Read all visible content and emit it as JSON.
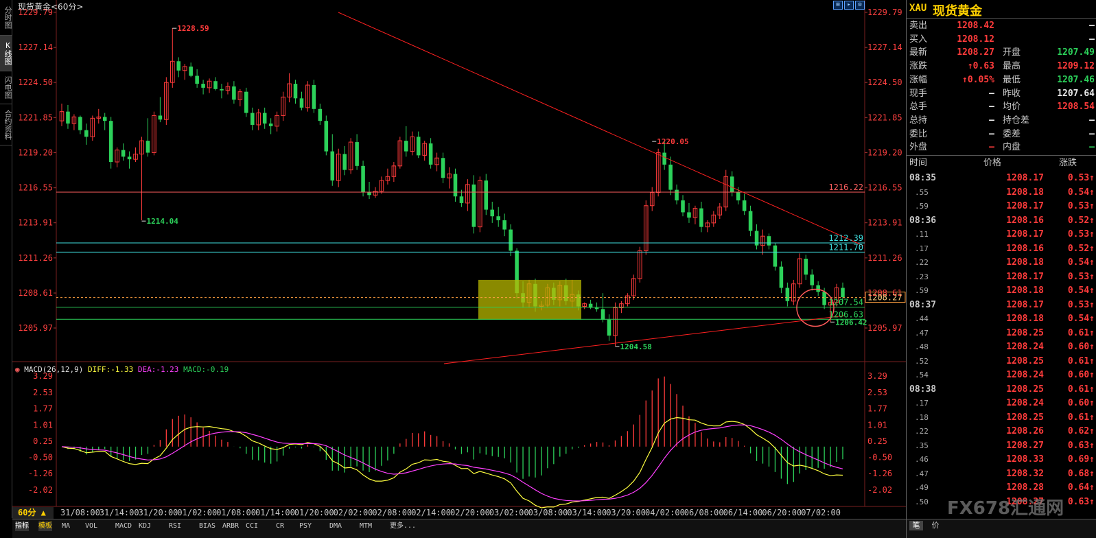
{
  "left_tabs": [
    "分时图",
    "K线图",
    "闪电图",
    "合约资料"
  ],
  "chart_title": "现货黄金<60分>",
  "toolbar_icons": [
    "zoom-in-icon",
    "zoom-out-icon",
    "settings-icon"
  ],
  "colors": {
    "up": "#ff3b3b",
    "down": "#2cd15a",
    "bg": "#000000",
    "grid": "#7a1f1f",
    "cyan": "#40e0e0",
    "yellow_box": "#b8b800",
    "diff": "#ffff40",
    "dea": "#ff40ff"
  },
  "chart_data": [
    {
      "type": "candlestick",
      "title": "现货黄金<60分>",
      "price_axis_ticks": [
        1229.79,
        1227.14,
        1224.5,
        1221.85,
        1219.2,
        1216.55,
        1213.91,
        1211.26,
        1208.61,
        1205.97
      ],
      "ylim": [
        1204.0,
        1230.3
      ],
      "x_labels": [
        "31/08:00",
        "31/14:00",
        "31/20:00",
        "01/02:00",
        "01/08:00",
        "01/14:00",
        "01/20:00",
        "02/02:00",
        "02/08:00",
        "02/14:00",
        "02/20:00",
        "03/02:00",
        "03/08:00",
        "03/14:00",
        "03/20:00",
        "04/02:00",
        "06/08:00",
        "06/14:00",
        "06/20:00",
        "07/02:00"
      ],
      "annotations": [
        {
          "text": "1228.59",
          "value": 1228.59,
          "color": "#ff3b3b"
        },
        {
          "text": "1214.04",
          "value": 1214.04,
          "color": "#2cd15a"
        },
        {
          "text": "1220.05",
          "value": 1220.05,
          "color": "#ff3b3b"
        },
        {
          "text": "1204.58",
          "value": 1204.58,
          "color": "#2cd15a"
        },
        {
          "text": "1206.42",
          "value": 1206.42,
          "color": "#2cd15a"
        }
      ],
      "horizontal_lines": [
        {
          "label": "1216.22",
          "value": 1216.22,
          "color": "#ff6060"
        },
        {
          "label": "1212.39",
          "value": 1212.39,
          "color": "#40e0e0"
        },
        {
          "label": "1211.70",
          "value": 1211.7,
          "color": "#40e0e0"
        },
        {
          "label": "1207.54",
          "value": 1207.54,
          "color": "#2cd15a"
        },
        {
          "label": "1206.63",
          "value": 1206.63,
          "color": "#2cd15a"
        }
      ],
      "current_price": "1208.27",
      "candles": [
        [
          1221.6,
          1222.9,
          1221.2,
          1222.3
        ],
        [
          1222.3,
          1222.8,
          1221.0,
          1221.4
        ],
        [
          1221.4,
          1222.1,
          1220.9,
          1221.9
        ],
        [
          1221.9,
          1222.0,
          1220.6,
          1220.9
        ],
        [
          1220.9,
          1221.4,
          1219.8,
          1220.4
        ],
        [
          1220.4,
          1222.0,
          1220.1,
          1221.8
        ],
        [
          1221.8,
          1222.5,
          1221.4,
          1221.9
        ],
        [
          1221.9,
          1222.2,
          1220.9,
          1221.6
        ],
        [
          1221.6,
          1221.9,
          1218.0,
          1218.5
        ],
        [
          1218.5,
          1219.6,
          1218.1,
          1219.4
        ],
        [
          1219.4,
          1219.9,
          1218.6,
          1218.9
        ],
        [
          1218.9,
          1219.3,
          1218.0,
          1218.7
        ],
        [
          1218.7,
          1219.6,
          1218.5,
          1219.1
        ],
        [
          1219.1,
          1220.4,
          1214.1,
          1220.1
        ],
        [
          1220.1,
          1221.8,
          1218.9,
          1219.2
        ],
        [
          1219.2,
          1222.3,
          1219.0,
          1222.0
        ],
        [
          1222.0,
          1223.4,
          1221.5,
          1221.7
        ],
        [
          1221.7,
          1224.9,
          1221.3,
          1224.5
        ],
        [
          1224.5,
          1228.6,
          1224.1,
          1226.1
        ],
        [
          1226.1,
          1226.4,
          1224.9,
          1225.4
        ],
        [
          1225.4,
          1225.9,
          1224.7,
          1225.7
        ],
        [
          1225.7,
          1226.0,
          1224.9,
          1225.0
        ],
        [
          1225.0,
          1225.5,
          1224.1,
          1224.4
        ],
        [
          1224.4,
          1224.7,
          1223.6,
          1224.1
        ],
        [
          1224.1,
          1224.8,
          1223.7,
          1224.6
        ],
        [
          1224.6,
          1224.9,
          1223.9,
          1224.0
        ],
        [
          1224.0,
          1224.4,
          1223.3,
          1223.9
        ],
        [
          1223.9,
          1224.5,
          1223.6,
          1224.2
        ],
        [
          1224.2,
          1224.6,
          1222.9,
          1223.2
        ],
        [
          1223.2,
          1224.0,
          1222.7,
          1223.8
        ],
        [
          1223.8,
          1224.1,
          1221.9,
          1222.2
        ],
        [
          1222.2,
          1222.6,
          1220.9,
          1221.3
        ],
        [
          1221.3,
          1222.5,
          1220.9,
          1222.2
        ],
        [
          1222.2,
          1222.6,
          1221.0,
          1221.4
        ],
        [
          1221.4,
          1221.8,
          1220.6,
          1221.2
        ],
        [
          1221.2,
          1222.3,
          1220.8,
          1222.0
        ],
        [
          1222.0,
          1223.8,
          1221.6,
          1223.4
        ],
        [
          1223.4,
          1225.2,
          1223.0,
          1224.4
        ],
        [
          1224.4,
          1224.7,
          1222.9,
          1223.3
        ],
        [
          1223.3,
          1223.8,
          1222.4,
          1222.6
        ],
        [
          1222.6,
          1224.6,
          1222.3,
          1224.3
        ],
        [
          1224.3,
          1224.7,
          1222.2,
          1222.5
        ],
        [
          1222.5,
          1222.9,
          1221.3,
          1221.6
        ],
        [
          1221.6,
          1222.0,
          1219.0,
          1219.3
        ],
        [
          1219.3,
          1220.6,
          1216.7,
          1217.1
        ],
        [
          1217.1,
          1219.5,
          1216.6,
          1219.1
        ],
        [
          1219.1,
          1219.7,
          1217.5,
          1217.9
        ],
        [
          1217.9,
          1220.3,
          1217.6,
          1220.0
        ],
        [
          1220.0,
          1220.6,
          1217.9,
          1218.2
        ],
        [
          1218.2,
          1218.6,
          1215.9,
          1216.2
        ],
        [
          1216.2,
          1217.0,
          1215.7,
          1216.0
        ],
        [
          1216.0,
          1216.6,
          1215.8,
          1216.3
        ],
        [
          1216.3,
          1217.4,
          1216.1,
          1217.1
        ],
        [
          1217.1,
          1218.0,
          1216.8,
          1217.4
        ],
        [
          1217.4,
          1218.5,
          1217.0,
          1218.2
        ],
        [
          1218.2,
          1220.4,
          1218.0,
          1220.1
        ],
        [
          1220.1,
          1221.2,
          1218.9,
          1219.3
        ],
        [
          1219.3,
          1220.8,
          1219.0,
          1220.4
        ],
        [
          1220.4,
          1220.8,
          1218.8,
          1219.0
        ],
        [
          1219.0,
          1220.1,
          1218.6,
          1219.9
        ],
        [
          1219.9,
          1220.3,
          1218.0,
          1218.3
        ],
        [
          1218.3,
          1219.2,
          1217.8,
          1218.8
        ],
        [
          1218.8,
          1219.2,
          1216.9,
          1217.3
        ],
        [
          1217.3,
          1218.1,
          1216.5,
          1217.6
        ],
        [
          1217.6,
          1218.0,
          1215.5,
          1215.9
        ],
        [
          1215.9,
          1216.4,
          1215.1,
          1215.4
        ],
        [
          1215.4,
          1217.2,
          1214.8,
          1216.8
        ],
        [
          1216.8,
          1217.5,
          1213.1,
          1213.6
        ],
        [
          1213.6,
          1217.4,
          1213.2,
          1217.1
        ],
        [
          1217.1,
          1217.6,
          1214.5,
          1214.9
        ],
        [
          1214.9,
          1215.5,
          1213.9,
          1214.4
        ],
        [
          1214.4,
          1215.1,
          1213.6,
          1214.1
        ],
        [
          1214.1,
          1214.6,
          1212.9,
          1213.4
        ],
        [
          1213.4,
          1213.8,
          1211.4,
          1211.8
        ],
        [
          1211.8,
          1212.0,
          1208.2,
          1208.6
        ],
        [
          1208.6,
          1209.5,
          1207.5,
          1207.9
        ],
        [
          1207.9,
          1209.6,
          1207.5,
          1209.3
        ],
        [
          1209.3,
          1209.7,
          1207.2,
          1207.6
        ],
        [
          1207.6,
          1208.0,
          1207.3,
          1207.7
        ],
        [
          1207.7,
          1209.3,
          1207.5,
          1209.0
        ],
        [
          1209.0,
          1209.4,
          1207.7,
          1208.1
        ],
        [
          1208.1,
          1209.5,
          1207.6,
          1209.2
        ],
        [
          1209.2,
          1209.7,
          1207.7,
          1208.0
        ],
        [
          1208.0,
          1209.6,
          1207.5,
          1208.5
        ],
        [
          1208.5,
          1208.8,
          1207.3,
          1207.6
        ],
        [
          1207.6,
          1207.9,
          1207.4,
          1207.8
        ],
        [
          1207.8,
          1208.1,
          1207.4,
          1207.5
        ],
        [
          1207.5,
          1207.9,
          1207.2,
          1207.4
        ],
        [
          1207.4,
          1208.6,
          1206.4,
          1206.6
        ],
        [
          1206.6,
          1207.0,
          1205.0,
          1205.4
        ],
        [
          1205.4,
          1207.9,
          1204.6,
          1207.5
        ],
        [
          1207.5,
          1208.0,
          1207.1,
          1207.8
        ],
        [
          1207.8,
          1208.6,
          1207.6,
          1208.4
        ],
        [
          1208.4,
          1210.0,
          1208.1,
          1209.7
        ],
        [
          1209.7,
          1212.1,
          1209.4,
          1211.8
        ],
        [
          1211.8,
          1215.6,
          1211.5,
          1215.2
        ],
        [
          1215.2,
          1216.6,
          1214.8,
          1216.2
        ],
        [
          1216.2,
          1219.5,
          1215.9,
          1219.2
        ],
        [
          1219.2,
          1220.1,
          1217.9,
          1218.3
        ],
        [
          1218.3,
          1218.9,
          1216.0,
          1216.4
        ],
        [
          1216.4,
          1216.8,
          1215.3,
          1215.6
        ],
        [
          1215.6,
          1216.0,
          1214.4,
          1214.7
        ],
        [
          1214.7,
          1215.4,
          1213.9,
          1214.3
        ],
        [
          1214.3,
          1215.2,
          1213.8,
          1215.0
        ],
        [
          1215.0,
          1215.5,
          1213.2,
          1213.6
        ],
        [
          1213.6,
          1214.1,
          1213.2,
          1213.9
        ],
        [
          1213.9,
          1214.8,
          1213.6,
          1214.5
        ],
        [
          1214.5,
          1215.4,
          1214.2,
          1215.1
        ],
        [
          1215.1,
          1217.9,
          1214.8,
          1217.4
        ],
        [
          1217.4,
          1217.8,
          1215.9,
          1216.2
        ],
        [
          1216.2,
          1216.6,
          1215.3,
          1215.6
        ],
        [
          1215.6,
          1216.1,
          1214.5,
          1214.8
        ],
        [
          1214.8,
          1215.2,
          1212.9,
          1213.3
        ],
        [
          1213.3,
          1213.8,
          1211.9,
          1212.2
        ],
        [
          1212.2,
          1213.4,
          1211.5,
          1212.9
        ],
        [
          1212.9,
          1213.1,
          1211.9,
          1212.2
        ],
        [
          1212.2,
          1212.4,
          1210.3,
          1210.6
        ],
        [
          1210.6,
          1211.0,
          1208.6,
          1209.0
        ],
        [
          1209.0,
          1209.4,
          1207.6,
          1208.0
        ],
        [
          1208.0,
          1209.6,
          1207.7,
          1209.3
        ],
        [
          1209.3,
          1211.6,
          1209.0,
          1211.2
        ],
        [
          1211.2,
          1211.5,
          1209.6,
          1210.0
        ],
        [
          1210.0,
          1210.4,
          1208.8,
          1209.2
        ],
        [
          1209.2,
          1209.5,
          1208.4,
          1208.7
        ],
        [
          1208.7,
          1209.0,
          1207.4,
          1207.7
        ],
        [
          1207.7,
          1208.3,
          1206.4,
          1207.9
        ],
        [
          1207.9,
          1209.3,
          1207.6,
          1209.0
        ],
        [
          1209.0,
          1209.4,
          1207.8,
          1208.3
        ]
      ]
    },
    {
      "type": "bar+line",
      "title": "MACD(26,12,9)",
      "legend": [
        {
          "name": "DIFF",
          "value": "DIFF:-1.33",
          "color": "#ffff40"
        },
        {
          "name": "DEA",
          "value": "DEA:-1.23",
          "color": "#ff40ff"
        },
        {
          "name": "MACD",
          "value": "MACD:-0.19",
          "color": "#2cd15a"
        }
      ],
      "axis_ticks": [
        3.29,
        2.53,
        1.77,
        1.01,
        0.25,
        -0.5,
        -1.26,
        -2.02
      ],
      "ylim": [
        -2.4,
        3.6
      ]
    }
  ],
  "bottom": {
    "period": "60分 ▲",
    "indicators": [
      "指标",
      "模板",
      "MA",
      "VOL",
      "MACD",
      "KDJ",
      "RSI",
      "BIAS",
      "ARBR",
      "CCI",
      "CR",
      "PSY",
      "DMA",
      "MTM",
      "更多..."
    ]
  },
  "quote": {
    "symbol_tag": "XAU",
    "name": "现货黄金",
    "rows": [
      {
        "l1": "卖出",
        "v1": "1208.42",
        "c1": "red",
        "l2": "",
        "v2": "—",
        "c2": "white"
      },
      {
        "l1": "买入",
        "v1": "1208.12",
        "c1": "red",
        "l2": "",
        "v2": "—",
        "c2": "white"
      },
      {
        "l1": "最新",
        "v1": "1208.27",
        "c1": "red",
        "l2": "开盘",
        "v2": "1207.49",
        "c2": "green"
      },
      {
        "l1": "涨跌",
        "v1": "↑0.63",
        "c1": "red",
        "l2": "最高",
        "v2": "1209.12",
        "c2": "red"
      },
      {
        "l1": "涨幅",
        "v1": "↑0.05%",
        "c1": "red",
        "l2": "最低",
        "v2": "1207.46",
        "c2": "green"
      },
      {
        "l1": "现手",
        "v1": "—",
        "c1": "white",
        "l2": "昨收",
        "v2": "1207.64",
        "c2": "white"
      },
      {
        "l1": "总手",
        "v1": "—",
        "c1": "white",
        "l2": "均价",
        "v2": "1208.54",
        "c2": "red"
      },
      {
        "l1": "总持",
        "v1": "—",
        "c1": "white",
        "l2": "持仓差",
        "v2": "—",
        "c2": "white"
      },
      {
        "l1": "委比",
        "v1": "—",
        "c1": "white",
        "l2": "委差",
        "v2": "—",
        "c2": "white"
      },
      {
        "l1": "外盘",
        "v1": "—",
        "c1": "red",
        "l2": "内盘",
        "v2": "—",
        "c2": "green"
      }
    ],
    "tick_header": {
      "time": "时间",
      "price": "价格",
      "change": "涨跌"
    },
    "ticks": [
      {
        "time": "08:35",
        "price": "1208.17",
        "chg": "0.53↑"
      },
      {
        "time": ".55",
        "price": "1208.18",
        "chg": "0.54↑"
      },
      {
        "time": ".59",
        "price": "1208.17",
        "chg": "0.53↑"
      },
      {
        "time": "08:36",
        "price": "1208.16",
        "chg": "0.52↑"
      },
      {
        "time": ".11",
        "price": "1208.17",
        "chg": "0.53↑"
      },
      {
        "time": ".17",
        "price": "1208.16",
        "chg": "0.52↑"
      },
      {
        "time": ".22",
        "price": "1208.18",
        "chg": "0.54↑"
      },
      {
        "time": ".23",
        "price": "1208.17",
        "chg": "0.53↑"
      },
      {
        "time": ".59",
        "price": "1208.18",
        "chg": "0.54↑"
      },
      {
        "time": "08:37",
        "price": "1208.17",
        "chg": "0.53↑"
      },
      {
        "time": ".44",
        "price": "1208.18",
        "chg": "0.54↑"
      },
      {
        "time": ".47",
        "price": "1208.25",
        "chg": "0.61↑"
      },
      {
        "time": ".48",
        "price": "1208.24",
        "chg": "0.60↑"
      },
      {
        "time": ".52",
        "price": "1208.25",
        "chg": "0.61↑"
      },
      {
        "time": ".54",
        "price": "1208.24",
        "chg": "0.60↑"
      },
      {
        "time": "08:38",
        "price": "1208.25",
        "chg": "0.61↑"
      },
      {
        "time": ".17",
        "price": "1208.24",
        "chg": "0.60↑"
      },
      {
        "time": ".18",
        "price": "1208.25",
        "chg": "0.61↑"
      },
      {
        "time": ".22",
        "price": "1208.26",
        "chg": "0.62↑"
      },
      {
        "time": ".35",
        "price": "1208.27",
        "chg": "0.63↑"
      },
      {
        "time": ".46",
        "price": "1208.33",
        "chg": "0.69↑"
      },
      {
        "time": ".47",
        "price": "1208.32",
        "chg": "0.68↑"
      },
      {
        "time": ".49",
        "price": "1208.28",
        "chg": "0.64↑"
      },
      {
        "time": ".50",
        "price": "1208.27",
        "chg": "0.63↑"
      }
    ],
    "bottom_tabs": [
      "笔",
      "价"
    ]
  },
  "watermark": "FX678汇通网"
}
